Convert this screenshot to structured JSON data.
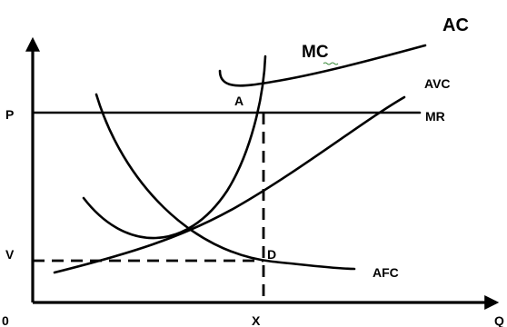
{
  "chart_data": {
    "type": "line",
    "title": "",
    "xlabel": "",
    "ylabel": "",
    "origin_label": "0",
    "x_axis_end_label": "Q",
    "x_marker": {
      "label": "X"
    },
    "y_markers": [
      {
        "label": "P"
      },
      {
        "label": "V"
      }
    ],
    "point_labels": [
      {
        "label": "A"
      },
      {
        "label": "D"
      }
    ],
    "series": [
      {
        "name": "MC"
      },
      {
        "name": "AC"
      },
      {
        "name": "AVC"
      },
      {
        "name": "AFC"
      },
      {
        "name": "MR"
      }
    ],
    "grid": false
  }
}
